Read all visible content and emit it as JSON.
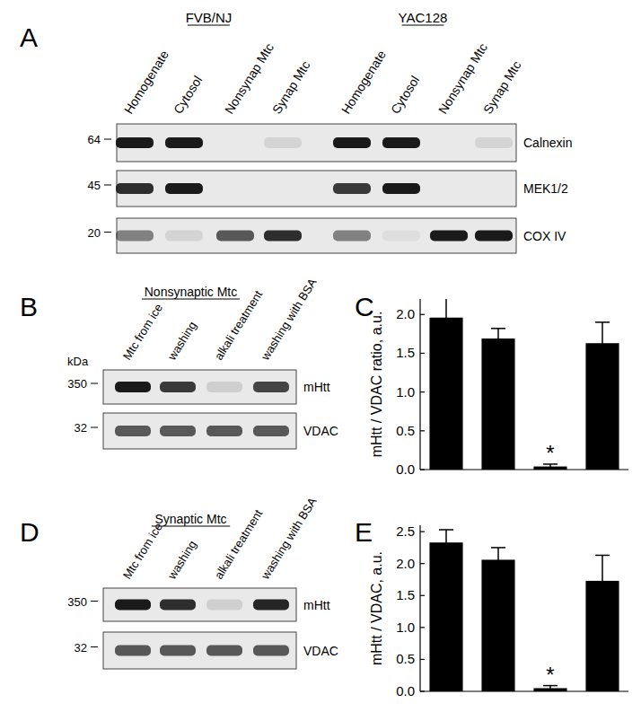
{
  "chart_data": [
    {
      "type": "bar",
      "panel": "C",
      "ylabel": "mHtt / VDAC ratio, a.u.",
      "categories": [
        null,
        null,
        null,
        null
      ],
      "values": [
        1.96,
        1.69,
        0.04,
        1.63
      ],
      "errors": [
        0.26,
        0.13,
        0.03,
        0.27
      ],
      "color": "#000000",
      "ylim": [
        0,
        2.2
      ],
      "yticks": [
        {
          "value": 0,
          "label": "0.0"
        },
        {
          "value": 0.5,
          "label": "0.5"
        },
        {
          "value": 1,
          "label": "1.0"
        },
        {
          "value": 1.5,
          "label": "1.5"
        },
        {
          "value": 2,
          "label": "2.0"
        }
      ],
      "annotations": [
        {
          "text": "*",
          "category": 2
        }
      ]
    },
    {
      "type": "bar",
      "panel": "E",
      "ylabel": "mHtt / VDAC, a.u.",
      "categories": [
        null,
        null,
        null,
        null
      ],
      "values": [
        2.33,
        2.06,
        0.05,
        1.73
      ],
      "errors": [
        0.2,
        0.19,
        0.04,
        0.4
      ],
      "color": "#000000",
      "ylim": [
        0,
        2.6
      ],
      "yticks": [
        {
          "value": 0,
          "label": "0.0"
        },
        {
          "value": 0.5,
          "label": "0.5"
        },
        {
          "value": 1,
          "label": "1.0"
        },
        {
          "value": 1.5,
          "label": "1.5"
        },
        {
          "value": 2,
          "label": "2.0"
        },
        {
          "value": 2.5,
          "label": "2.5"
        }
      ],
      "annotations": [
        {
          "text": "*",
          "category": 2
        }
      ]
    }
  ],
  "blots": [
    {
      "panel": "A",
      "groups": [
        {
          "label": "FVB/NJ",
          "lanes": [
            "Homogenate",
            "Cytosol",
            "Nonsynap Mtc",
            "Synap Mtc"
          ]
        },
        {
          "label": "YAC128",
          "lanes": [
            "Homogenate",
            "Cytosol",
            "Nonsynap Mtc",
            "Synap Mtc"
          ]
        }
      ],
      "rows": [
        {
          "label": "Calnexin",
          "mw": 64,
          "intensity": [
            1,
            1,
            0,
            0.1,
            1,
            1,
            0,
            0.1
          ]
        },
        {
          "label": "MEK1/2",
          "mw": 45,
          "intensity": [
            0.9,
            1,
            0,
            0,
            0.85,
            1,
            0,
            0
          ]
        },
        {
          "label": "COX IV",
          "mw": 20,
          "intensity": [
            0.5,
            0.1,
            0.7,
            0.9,
            0.5,
            0.05,
            1,
            1
          ]
        }
      ]
    },
    {
      "panel": "B",
      "title": "Nonsynaptic Mtc",
      "mw_unit": "kDa",
      "lanes": [
        "Mtc from ice",
        "washing",
        "alkali treatment",
        "washing with BSA"
      ],
      "rows": [
        {
          "label": "mHtt",
          "mw": 350,
          "intensity": [
            1,
            0.85,
            0.12,
            0.8
          ]
        },
        {
          "label": "VDAC",
          "mw": 32,
          "intensity": [
            0.7,
            0.7,
            0.7,
            0.7
          ]
        }
      ]
    },
    {
      "panel": "D",
      "title": "Synaptic Mtc",
      "lanes": [
        "Mtc from ice",
        "washing",
        "alkali treatment",
        "washing with BSA"
      ],
      "rows": [
        {
          "label": "mHtt",
          "mw": 350,
          "intensity": [
            1,
            0.9,
            0.12,
            0.95
          ]
        },
        {
          "label": "VDAC",
          "mw": 32,
          "intensity": [
            0.7,
            0.7,
            0.7,
            0.7
          ]
        }
      ]
    }
  ]
}
